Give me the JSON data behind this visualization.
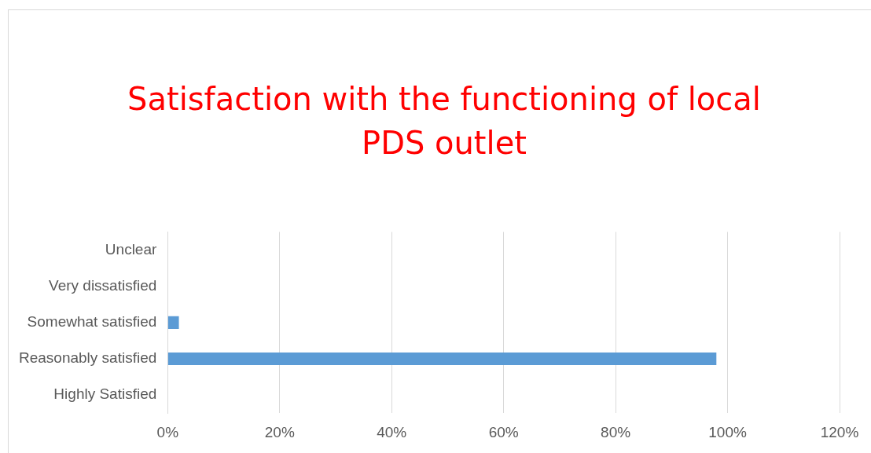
{
  "chart_data": {
    "type": "bar",
    "orientation": "horizontal",
    "title": "Satisfaction with the functioning of local PDS outlet",
    "categories": [
      "Unclear",
      "Very dissatisfied",
      "Somewhat satisfied",
      "Reasonably satisfied",
      "Highly Satisfied"
    ],
    "values": [
      0,
      0,
      2,
      98,
      0
    ],
    "color": "#5b9bd5",
    "xlim": [
      0,
      120
    ],
    "xticks": [
      {
        "value": 0,
        "label": "0%"
      },
      {
        "value": 20,
        "label": "20%"
      },
      {
        "value": 40,
        "label": "40%"
      },
      {
        "value": 60,
        "label": "60%"
      },
      {
        "value": 80,
        "label": "80%"
      },
      {
        "value": 100,
        "label": "100%"
      },
      {
        "value": 120,
        "label": "120%"
      }
    ],
    "grid": "x",
    "legend": false
  }
}
